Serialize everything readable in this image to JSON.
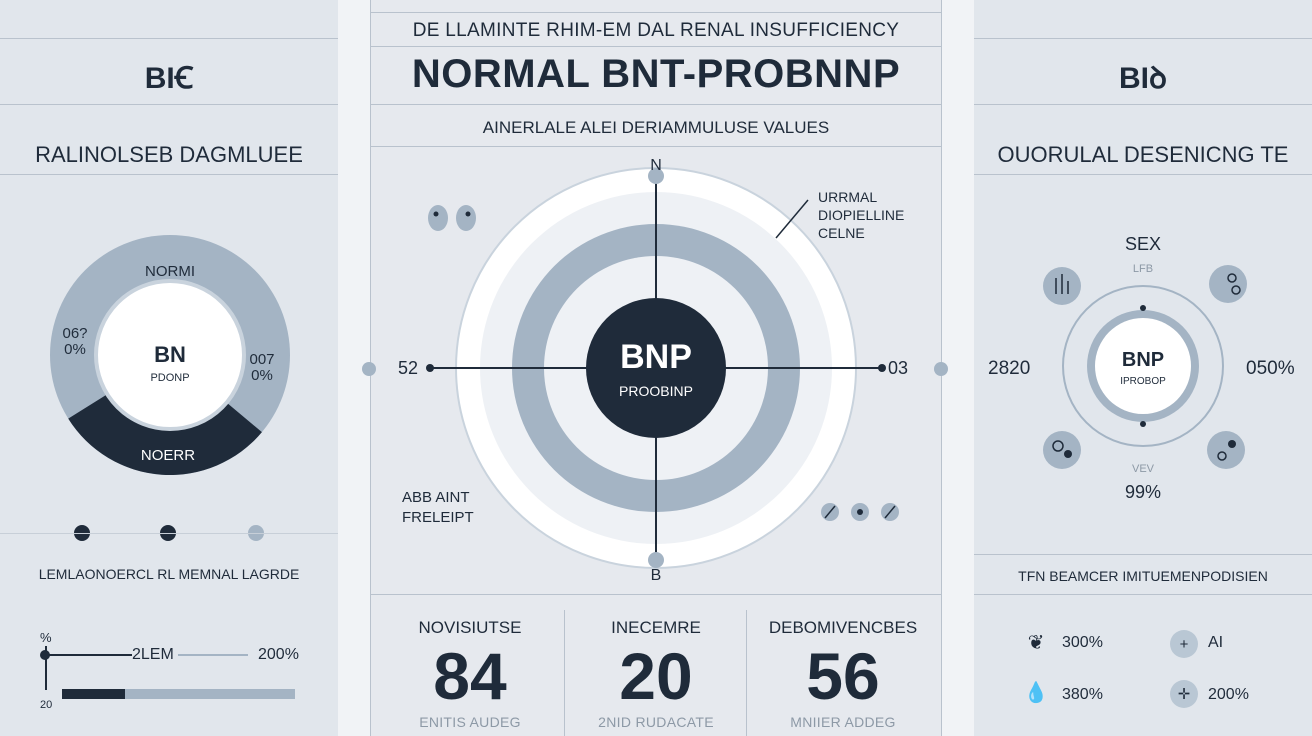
{
  "colors": {
    "dark": "#1f2b3a",
    "mid": "#a4b4c4",
    "light": "#ffffff",
    "bg": "#e4e8ed"
  },
  "left": {
    "header": "BIꞒ",
    "subtitle": "RALINOLSEB DAGMLUEE",
    "donut": {
      "top_label": "NORMI",
      "center_title": "BN",
      "center_sub": "PDONP",
      "left_label_top": "06?",
      "left_label_bottom": "0%",
      "right_label_top": "007",
      "right_label_bottom": "0%",
      "bottom_label": "NOERR",
      "dark_fraction": 0.3
    },
    "section_title": "LEMLAONOERCL RL MEMNAL LAGRDE",
    "bar": {
      "axis_top": "%",
      "axis_bottom": "20",
      "label": "2LEM",
      "value_label": "200%",
      "fill_fraction": 0.27
    }
  },
  "center": {
    "top_line": "DE LLAMINTE RHIM-EM DAL RENAL INSUFFICIENCY",
    "title": "NORMAL BNT-PROBNNP",
    "subtitle": "AINERLALE ALEI DERIAMMULUSE VALUES",
    "compass": {
      "north": "N",
      "south": "B",
      "west": "52",
      "east": "03"
    },
    "core_title": "BNP",
    "core_sub": "PROOBINP",
    "callout_top": [
      "URRMAL",
      "DIOPIELLINE",
      "CELNE"
    ],
    "callout_bottom": [
      "ABB AINT",
      "FRELEIPT"
    ],
    "stats": [
      {
        "label": "NOVISIUTSE",
        "value": "84",
        "foot": "ENITIS AUDEG"
      },
      {
        "label": "INECEMRE",
        "value": "20",
        "foot": "2NID RUDACATE"
      },
      {
        "label": "DEBOMIVENCBES",
        "value": "56",
        "foot": "MNIIER ADDEG"
      }
    ]
  },
  "right": {
    "header": "BIꝺ",
    "subtitle": "OUORULAL DESENICNG TE",
    "ring": {
      "top_label": "SEX",
      "top_small": "LFB",
      "center_title": "BNP",
      "center_sub": "IPROBOP",
      "left_value": "2820",
      "right_value": "050%",
      "bottom_small": "VEV",
      "bottom_value": "99%"
    },
    "section_title": "TFN BEAMCER IMITUEMENPODISIEN",
    "legend": [
      {
        "icon": "leaf-icon",
        "value": "300%"
      },
      {
        "icon": "plus-icon",
        "value": "AI"
      },
      {
        "icon": "drop-icon",
        "value": "380%"
      },
      {
        "icon": "cross-icon",
        "value": "200%"
      }
    ]
  }
}
